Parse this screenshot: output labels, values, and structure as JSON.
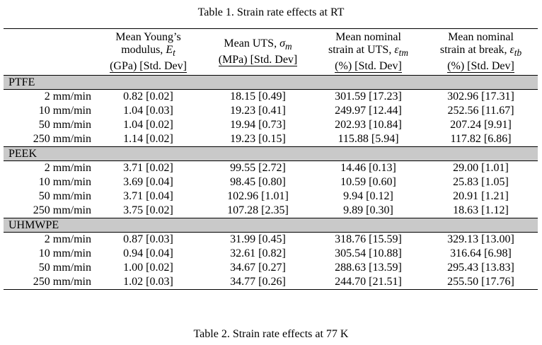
{
  "table1": {
    "caption": "Table 1. Strain rate effects at RT",
    "headers": [
      "",
      "Mean Young’s modulus, E_t (GPa) [Std. Dev]",
      "Mean UTS, σ_m (MPa) [Std. Dev]",
      "Mean nominal strain at UTS, ε_tm (%) [Std. Dev]",
      "Mean nominal strain at break, ε_tb (%) [Std. Dev]"
    ],
    "header_parts": {
      "h1_l1": "Mean Young’s",
      "h1_l2": "modulus, ",
      "h1_sym": "E",
      "h1_sub": "t",
      "h1_l3": "(GPa) [Std. Dev]",
      "h2_l1": "Mean UTS, ",
      "h2_sym": "σ",
      "h2_sub": "m",
      "h2_l2": "(MPa) [Std. Dev]",
      "h3_l1": "Mean nominal",
      "h3_l2": "strain at UTS, ",
      "h3_sym": "ε",
      "h3_sub": "tm",
      "h3_l3": "(%) [Std. Dev]",
      "h4_l1": "Mean nominal",
      "h4_l2": "strain at break, ",
      "h4_sym": "ε",
      "h4_sub": "tb",
      "h4_l3": "(%) [Std. Dev]"
    },
    "groups": [
      {
        "name": "PTFE",
        "rows": [
          {
            "rate": "2 mm/min",
            "E": "0.82 [0.02]",
            "UTS": "18.15 [0.49]",
            "e_tm": "301.59 [17.23]",
            "e_tb": "302.96 [17.31]"
          },
          {
            "rate": "10 mm/min",
            "E": "1.04 [0.03]",
            "UTS": "19.23 [0.41]",
            "e_tm": "249.97 [12.44]",
            "e_tb": "252.56 [11.67]"
          },
          {
            "rate": "50 mm/min",
            "E": "1.04 [0.02]",
            "UTS": "19.94 [0.73]",
            "e_tm": "202.93 [10.84]",
            "e_tb": "207.24 [9.91]"
          },
          {
            "rate": "250 mm/min",
            "E": "1.14 [0.02]",
            "UTS": "19.23 [0.15]",
            "e_tm": "115.88 [5.94]",
            "e_tb": "117.82 [6.86]"
          }
        ]
      },
      {
        "name": "PEEK",
        "rows": [
          {
            "rate": "2 mm/min",
            "E": "3.71 [0.02]",
            "UTS": "99.55 [2.72]",
            "e_tm": "14.46 [0.13]",
            "e_tb": "29.00 [1.01]"
          },
          {
            "rate": "10 mm/min",
            "E": "3.69 [0.04]",
            "UTS": "98.45 [0.80]",
            "e_tm": "10.59 [0.60]",
            "e_tb": "25.83 [1.05]"
          },
          {
            "rate": "50 mm/min",
            "E": "3.71 [0.04]",
            "UTS": "102.96 [1.01]",
            "e_tm": "9.94 [0.12]",
            "e_tb": "20.91 [1.21]"
          },
          {
            "rate": "250 mm/min",
            "E": "3.75 [0.02]",
            "UTS": "107.28 [2.35]",
            "e_tm": "9.89 [0.30]",
            "e_tb": "18.63 [1.12]"
          }
        ]
      },
      {
        "name": "UHMWPE",
        "rows": [
          {
            "rate": "2 mm/min",
            "E": "0.87 [0.03]",
            "UTS": "31.99 [0.45]",
            "e_tm": "318.76 [15.59]",
            "e_tb": "329.13 [13.00]"
          },
          {
            "rate": "10 mm/min",
            "E": "0.94 [0.04]",
            "UTS": "32.61 [0.82]",
            "e_tm": "305.54 [10.88]",
            "e_tb": "316.64 [6.98]"
          },
          {
            "rate": "50 mm/min",
            "E": "1.00 [0.02]",
            "UTS": "34.67 [0.27]",
            "e_tm": "288.63 [13.59]",
            "e_tb": "295.43 [13.83]"
          },
          {
            "rate": "250 mm/min",
            "E": "1.02 [0.03]",
            "UTS": "34.77 [0.26]",
            "e_tm": "244.70 [21.51]",
            "e_tb": "255.50 [17.76]"
          }
        ]
      }
    ]
  },
  "table2": {
    "caption": "Table 2. Strain rate effects at 77 K"
  }
}
